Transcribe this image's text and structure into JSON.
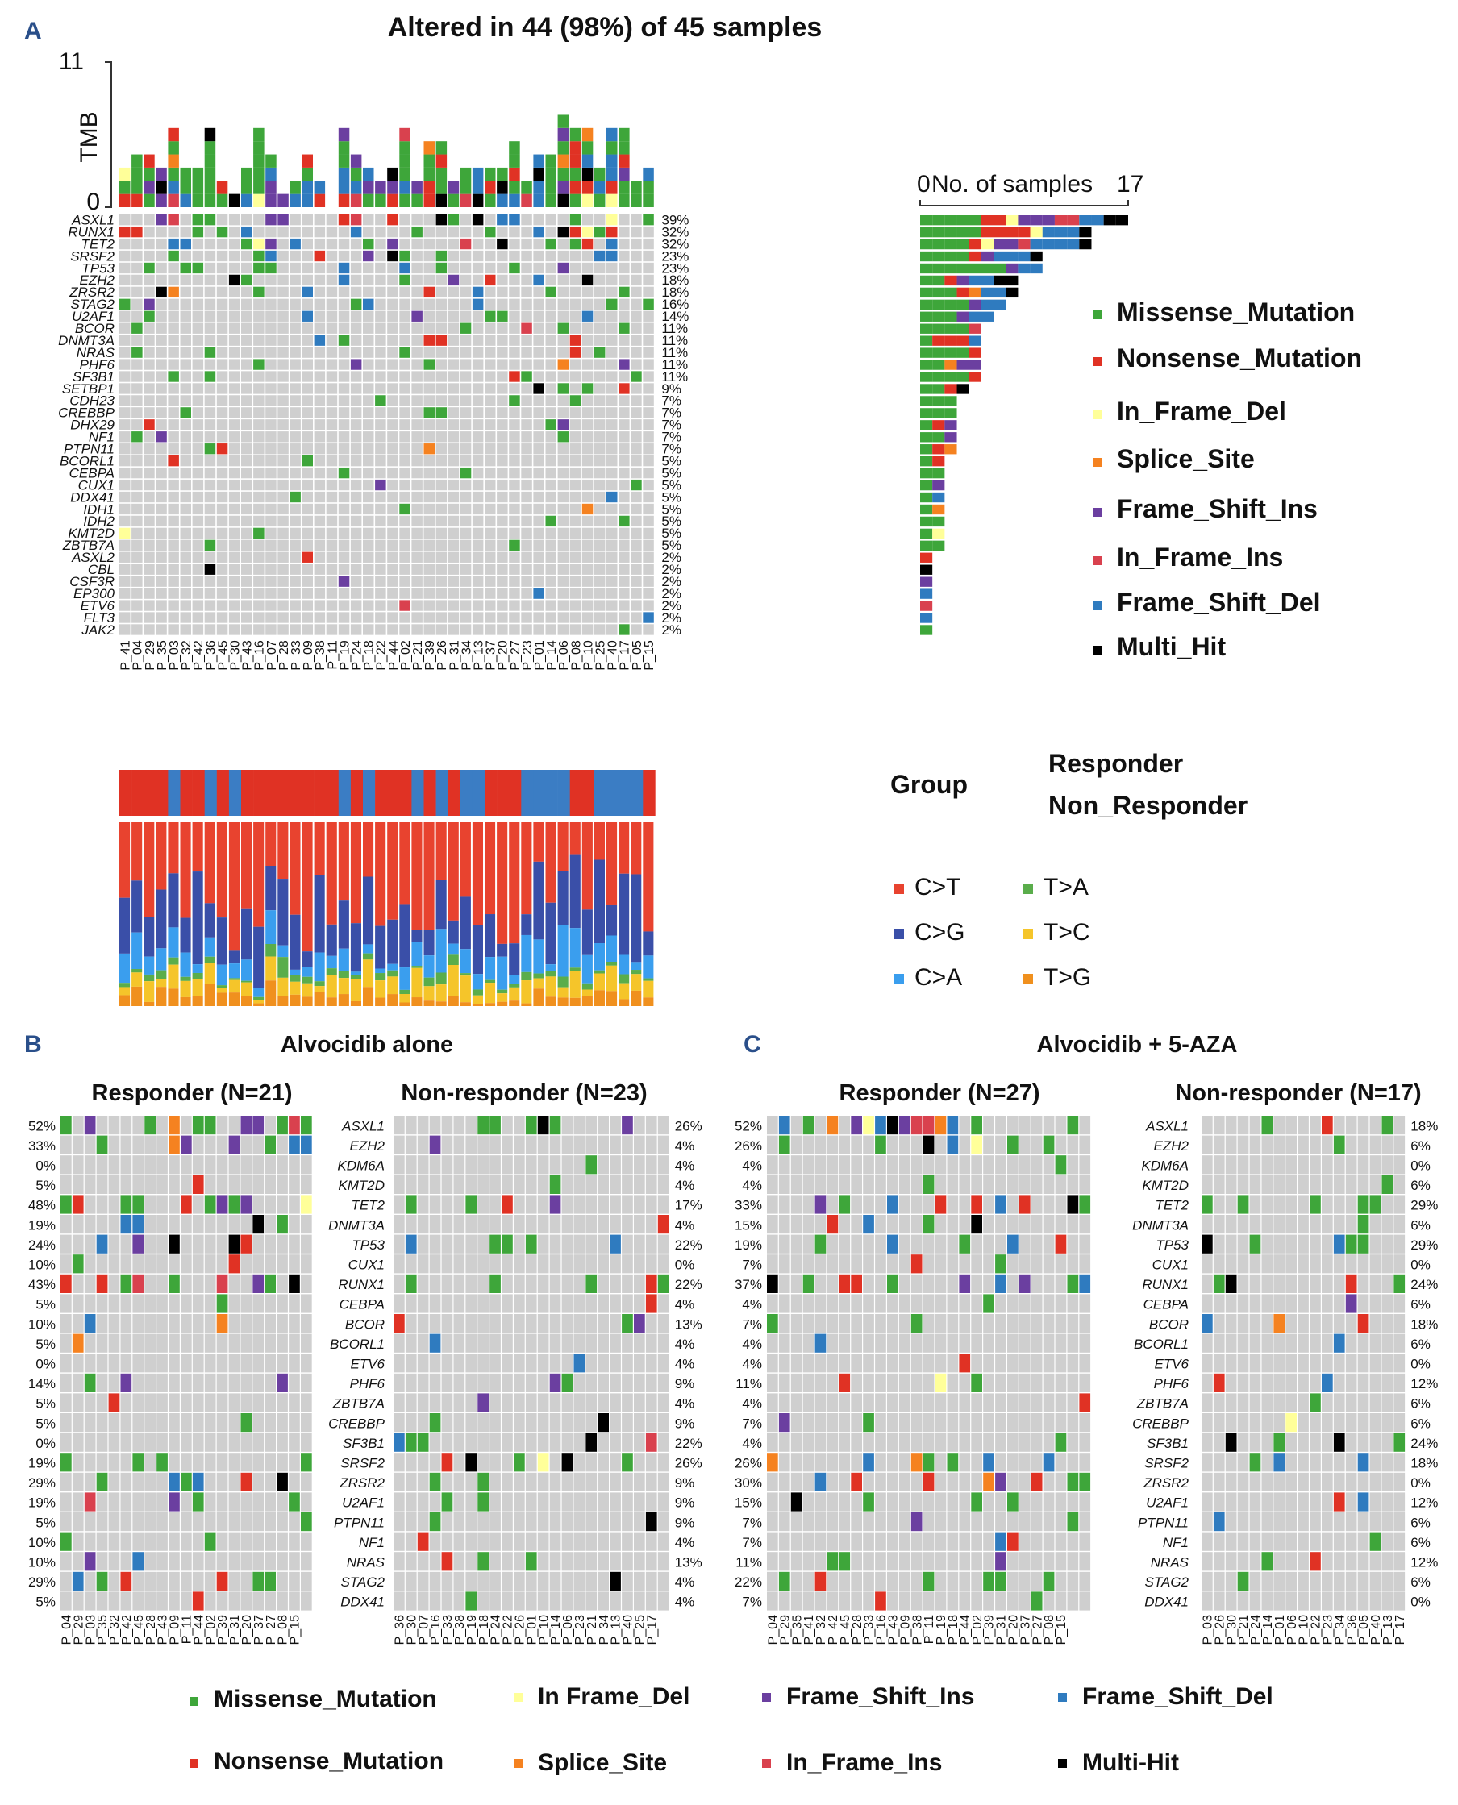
{
  "colors": {
    "missense": "#3ea63a",
    "nonsense": "#e03224",
    "inframe_del": "#ffff99",
    "splice": "#f58220",
    "fs_ins": "#6b3fa0",
    "inframe_ins": "#d9414e",
    "fs_del": "#2f7bbf",
    "multi": "#000000",
    "empty": "#cfcfcf",
    "responder": "#e03224",
    "non_responder": "#3b7dc4",
    "CT": "#e8432f",
    "CG": "#3a4fa8",
    "CA": "#3a9eee",
    "TA": "#5aad4b",
    "TC": "#f5c52a",
    "TG": "#f0901e"
  },
  "panelA": {
    "letter": "A",
    "title": "Altered in 44 (98%) of 45 samples",
    "tmb_label": "TMB",
    "tmb_max": "11",
    "tmb_min": "0",
    "count_axis_min": "0",
    "count_axis_label": "No. of samples",
    "count_axis_max": "17",
    "group_label": "Group",
    "group_legend": [
      "Responder",
      "Non_Responder"
    ],
    "mutation_legend": [
      "Missense_Mutation",
      "Nonsense_Mutation",
      "In_Frame_Del",
      "Splice_Site",
      "Frame_Shift_Ins",
      "In_Frame_Ins",
      "Frame_Shift_Del",
      "Multi_Hit"
    ],
    "substitution_legend": [
      "C>T",
      "C>G",
      "C>A",
      "T>A",
      "T>C",
      "T>G"
    ]
  },
  "panelB": {
    "letter": "B",
    "title": "Alvocidib alone",
    "left_title": "Responder (N=21)",
    "right_title": "Non-responder (N=23)"
  },
  "panelC": {
    "letter": "C",
    "title": "Alvocidib +  5-AZA",
    "left_title": "Responder (N=27)",
    "right_title": "Non-responder (N=17)"
  },
  "bottom_legend": [
    "Missense_Mutation",
    "In Frame_Del",
    "Frame_Shift_Ins",
    "Frame_Shift_Del",
    "Nonsense_Mutation",
    "Splice_Site",
    "In_Frame_Ins",
    "Multi-Hit"
  ],
  "chart_data": [
    {
      "type": "heatmap",
      "title": "Altered in 44 (98%) of 45 samples",
      "samples": [
        "P_41",
        "P_04",
        "P_29",
        "P_35",
        "P_03",
        "P_32",
        "P_42",
        "P_36",
        "P_45",
        "P_30",
        "P_43",
        "P_16",
        "P_07",
        "P_28",
        "P_33",
        "P_09",
        "P_38",
        "P_11",
        "P_19",
        "P_24",
        "P_18",
        "P_22",
        "P_44",
        "P_02",
        "P_21",
        "P_39",
        "P_26",
        "P_31",
        "P_34",
        "P_13",
        "P_37",
        "P_20",
        "P_27",
        "P_23",
        "P_01",
        "P_14",
        "P_06",
        "P_08",
        "P_10",
        "P_25",
        "P_40",
        "P_17",
        "P_05",
        "P_15"
      ],
      "genes": [
        "ASXL1",
        "RUNX1",
        "TET2",
        "SRSF2",
        "TP53",
        "EZH2",
        "ZRSR2",
        "STAG2",
        "U2AF1",
        "BCOR",
        "DNMT3A",
        "NRAS",
        "PHF6",
        "SF3B1",
        "SETBP1",
        "CDH23",
        "CREBBP",
        "DHX29",
        "NF1",
        "PTPN11",
        "BCORL1",
        "CEBPA",
        "CUX1",
        "DDX41",
        "IDH1",
        "IDH2",
        "KMT2D",
        "ZBTB7A",
        "ASXL2",
        "CBL",
        "CSF3R",
        "EP300",
        "ETV6",
        "FLT3",
        "JAK2"
      ],
      "percent": [
        "39%",
        "32%",
        "32%",
        "23%",
        "23%",
        "18%",
        "18%",
        "16%",
        "14%",
        "11%",
        "11%",
        "11%",
        "11%",
        "11%",
        "9%",
        "7%",
        "7%",
        "7%",
        "7%",
        "7%",
        "5%",
        "5%",
        "5%",
        "5%",
        "5%",
        "5%",
        "5%",
        "5%",
        "2%",
        "2%",
        "2%",
        "2%",
        "2%",
        "2%",
        "2%"
      ],
      "counts": [
        17,
        14,
        14,
        10,
        10,
        8,
        8,
        7,
        6,
        5,
        5,
        5,
        5,
        5,
        4,
        3,
        3,
        3,
        3,
        3,
        2,
        2,
        2,
        2,
        2,
        2,
        2,
        2,
        1,
        1,
        1,
        1,
        1,
        1,
        1
      ],
      "groups": [
        "R",
        "R",
        "R",
        "R",
        "N",
        "R",
        "R",
        "N",
        "R",
        "N",
        "R",
        "R",
        "R",
        "R",
        "R",
        "R",
        "R",
        "R",
        "N",
        "R",
        "N",
        "R",
        "R",
        "R",
        "N",
        "R",
        "N",
        "R",
        "N",
        "N",
        "R",
        "R",
        "R",
        "N",
        "N",
        "N",
        "N",
        "R",
        "R",
        "N",
        "N",
        "N",
        "N",
        "R"
      ],
      "tmb_max": 11
    },
    {
      "type": "heatmap",
      "title": "Alvocidib alone",
      "genes": [
        "ASXL1",
        "EZH2",
        "KDM6A",
        "KMT2D",
        "TET2",
        "DNMT3A",
        "TP53",
        "CUX1",
        "RUNX1",
        "CEBPA",
        "BCOR",
        "BCORL1",
        "ETV6",
        "PHF6",
        "ZBTB7A",
        "CREBBP",
        "SF3B1",
        "SRSF2",
        "ZRSR2",
        "U2AF1",
        "PTPN11",
        "NF1",
        "NRAS",
        "STAG2",
        "DDX41"
      ],
      "responder_percent": [
        "52%",
        "33%",
        "0%",
        "5%",
        "48%",
        "19%",
        "24%",
        "10%",
        "43%",
        "5%",
        "10%",
        "5%",
        "0%",
        "14%",
        "5%",
        "5%",
        "0%",
        "19%",
        "29%",
        "19%",
        "5%",
        "10%",
        "10%",
        "29%",
        "5%"
      ],
      "non_responder_percent": [
        "26%",
        "4%",
        "4%",
        "4%",
        "17%",
        "4%",
        "22%",
        "0%",
        "22%",
        "4%",
        "13%",
        "4%",
        "4%",
        "9%",
        "4%",
        "9%",
        "22%",
        "26%",
        "9%",
        "9%",
        "9%",
        "4%",
        "13%",
        "4%",
        "4%"
      ],
      "responder_samples": [
        "P_04",
        "P_29",
        "P_03",
        "P_35",
        "P_32",
        "P_42",
        "P_45",
        "P_28",
        "P_43",
        "P_09",
        "P_11",
        "P_44",
        "P_02",
        "P_39",
        "P_31",
        "P_20",
        "P_37",
        "P_27",
        "P_08",
        "P_15"
      ],
      "non_responder_samples": [
        "P_36",
        "P_30",
        "P_07",
        "P_16",
        "P_33",
        "P_38",
        "P_19",
        "P_18",
        "P_24",
        "P_22",
        "P_26",
        "P_01",
        "P_10",
        "P_14",
        "P_06",
        "P_23",
        "P_21",
        "P_34",
        "P_13",
        "P_40",
        "P_25",
        "P_17"
      ]
    },
    {
      "type": "heatmap",
      "title": "Alvocidib +  5-AZA",
      "genes": [
        "ASXL1",
        "EZH2",
        "KDM6A",
        "KMT2D",
        "TET2",
        "DNMT3A",
        "TP53",
        "CUX1",
        "RUNX1",
        "CEBPA",
        "BCOR",
        "BCORL1",
        "ETV6",
        "PHF6",
        "ZBTB7A",
        "CREBBP",
        "SF3B1",
        "SRSF2",
        "ZRSR2",
        "U2AF1",
        "PTPN11",
        "NF1",
        "NRAS",
        "STAG2",
        "DDX41"
      ],
      "responder_percent": [
        "52%",
        "26%",
        "4%",
        "4%",
        "33%",
        "15%",
        "19%",
        "7%",
        "37%",
        "4%",
        "7%",
        "4%",
        "4%",
        "11%",
        "4%",
        "7%",
        "4%",
        "26%",
        "30%",
        "15%",
        "7%",
        "7%",
        "11%",
        "22%",
        "7%"
      ],
      "non_responder_percent": [
        "18%",
        "6%",
        "0%",
        "6%",
        "29%",
        "6%",
        "29%",
        "0%",
        "24%",
        "6%",
        "18%",
        "6%",
        "0%",
        "12%",
        "6%",
        "6%",
        "24%",
        "18%",
        "0%",
        "12%",
        "6%",
        "6%",
        "12%",
        "6%",
        "0%"
      ],
      "responder_samples": [
        "P_04",
        "P_29",
        "P_35",
        "P_41",
        "P_32",
        "P_42",
        "P_45",
        "P_28",
        "P_33",
        "P_16",
        "P_43",
        "P_09",
        "P_38",
        "P_11",
        "P_19",
        "P_18",
        "P_44",
        "P_02",
        "P_39",
        "P_31",
        "P_20",
        "P_37",
        "P_27",
        "P_08",
        "P_15"
      ],
      "non_responder_samples": [
        "P_03",
        "P_26",
        "P_30",
        "P_21",
        "P_24",
        "P_14",
        "P_01",
        "P_06",
        "P_10",
        "P_22",
        "P_23",
        "P_34",
        "P_36",
        "P_05",
        "P_40",
        "P_13",
        "P_17"
      ]
    }
  ]
}
